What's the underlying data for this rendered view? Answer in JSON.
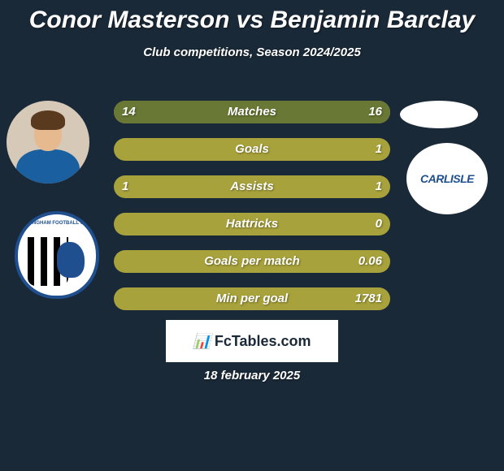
{
  "background_color": "#1a2937",
  "text_color": "#ffffff",
  "header": {
    "title": "Conor Masterson vs Benjamin Barclay",
    "subtitle": "Club competitions, Season 2024/2025"
  },
  "stats": {
    "bar_base_color": "#a8a23c",
    "bar_fill_color": "#697834",
    "rows": [
      {
        "label": "Matches",
        "left": "14",
        "right": "16",
        "left_fill_pct": 50,
        "right_fill_pct": 50
      },
      {
        "label": "Goals",
        "left": "",
        "right": "1",
        "left_fill_pct": 0,
        "right_fill_pct": 0
      },
      {
        "label": "Assists",
        "left": "1",
        "right": "1",
        "left_fill_pct": 0,
        "right_fill_pct": 0
      },
      {
        "label": "Hattricks",
        "left": "",
        "right": "0",
        "left_fill_pct": 0,
        "right_fill_pct": 0
      },
      {
        "label": "Goals per match",
        "left": "",
        "right": "0.06",
        "left_fill_pct": 0,
        "right_fill_pct": 0
      },
      {
        "label": "Min per goal",
        "left": "",
        "right": "1781",
        "left_fill_pct": 0,
        "right_fill_pct": 0
      }
    ]
  },
  "left_side": {
    "player_name": "Conor Masterson",
    "club_name": "Gillingham Football Club",
    "club_text": "GILLINGHAM FOOTBALL CLUB"
  },
  "right_side": {
    "player_name": "Benjamin Barclay",
    "club_name": "Carlisle",
    "club_text": "CARLISLE"
  },
  "footer": {
    "logo_text": "FcTables.com",
    "date": "18 february 2025"
  }
}
